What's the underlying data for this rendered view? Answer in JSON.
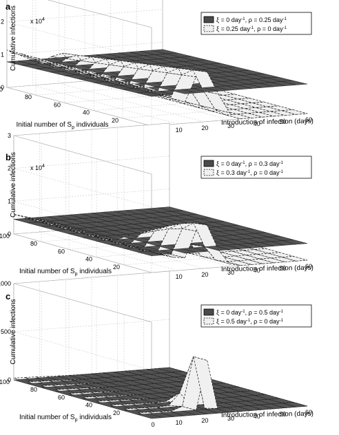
{
  "chart_data": [
    {
      "panel": "a",
      "type": "surface3d",
      "zlabel": "Cumulative infections",
      "zscale_label": "x 10",
      "zscale_exp": "4",
      "zticks": [
        "0",
        "1",
        "2",
        "3"
      ],
      "zlim": [
        0,
        30000
      ],
      "xlabel": "Introduction of infection (days)",
      "xticks": [
        "0",
        "10",
        "20",
        "30",
        "40",
        "50",
        "60"
      ],
      "xlim": [
        0,
        60
      ],
      "ylabel": "Initial number of S",
      "ylabel_sub": "p",
      "ylabel_tail": " individuals",
      "yticks": [
        "0",
        "20",
        "40",
        "60",
        "80",
        "100"
      ],
      "ylim": [
        0,
        100
      ],
      "series": [
        {
          "name": "ξ = 0 day-1, ρ = 0.25 day-1",
          "style": "dark-surface",
          "values": "approx. constant at 9000 for all x and y"
        },
        {
          "name": "ξ = 0.25 day-1, ρ = 0 day-1",
          "style": "light-dashed-surface",
          "values": "approx. 12000 at x=0,y=100 rising to peak ~16000 near x≈20, falling to ~0 for x≥30"
        }
      ]
    },
    {
      "panel": "b",
      "type": "surface3d",
      "zlabel": "Cumulative infections",
      "zscale_label": "x 10",
      "zscale_exp": "4",
      "zticks": [
        "0",
        "1",
        "2",
        "3"
      ],
      "zlim": [
        0,
        30000
      ],
      "xlabel": "Introduction of infection (days)",
      "xticks": [
        "0",
        "10",
        "20",
        "30",
        "40",
        "50",
        "60"
      ],
      "xlim": [
        0,
        60
      ],
      "ylabel": "Initial number of S",
      "ylabel_sub": "p",
      "ylabel_tail": " individuals",
      "yticks": [
        "20",
        "40",
        "60",
        "80",
        "100"
      ],
      "ylim": [
        0,
        100
      ],
      "series": [
        {
          "name": "ξ = 0 day-1, ρ = 0.3 day-1",
          "style": "dark-surface",
          "values": "approx. constant at 5000"
        },
        {
          "name": "ξ = 0.3 day-1, ρ = 0 day-1",
          "style": "light-dashed-surface",
          "values": "peak ~14000 near x≈20, ~0 for x≥30"
        }
      ]
    },
    {
      "panel": "c",
      "type": "surface3d",
      "zlabel": "Cumulative infections",
      "zticks": [
        "0",
        "500",
        "1000"
      ],
      "zlim": [
        0,
        1000
      ],
      "xlabel": "Introduction of infection (days)",
      "xticks": [
        "0",
        "10",
        "20",
        "30",
        "40",
        "50",
        "60"
      ],
      "xlim": [
        0,
        60
      ],
      "ylabel": "Initial number of S",
      "ylabel_sub": "p",
      "ylabel_tail": " individuals",
      "yticks": [
        "20",
        "40",
        "60",
        "80",
        "100"
      ],
      "ylim": [
        0,
        100
      ],
      "series": [
        {
          "name": "ξ = 0 day-1, ρ = 0.5 day-1",
          "style": "dark-surface",
          "values": "approx. 0"
        },
        {
          "name": "ξ = 0.5 day-1, ρ = 0 day-1",
          "style": "light-dashed-surface",
          "values": "sharp spike ~700 near x≈20, y≈20; ~0 elsewhere"
        }
      ]
    }
  ],
  "legend_parts": {
    "xi": "ξ = ",
    "rho": "ρ = ",
    "unit": " day",
    "exp": "-1",
    "sep": ", "
  },
  "legends": [
    [
      {
        "xi": "0",
        "rho": "0.25"
      },
      {
        "xi": "0.25",
        "rho": "0"
      }
    ],
    [
      {
        "xi": "0",
        "rho": "0.3"
      },
      {
        "xi": "0.3",
        "rho": "0"
      }
    ],
    [
      {
        "xi": "0",
        "rho": "0.5"
      },
      {
        "xi": "0.5",
        "rho": "0"
      }
    ]
  ],
  "panel_letters": [
    "a",
    "b",
    "c"
  ],
  "colors": {
    "dark": "#4a4a4a",
    "light": "#f0f0f0",
    "grid": "#bdbdbd"
  }
}
